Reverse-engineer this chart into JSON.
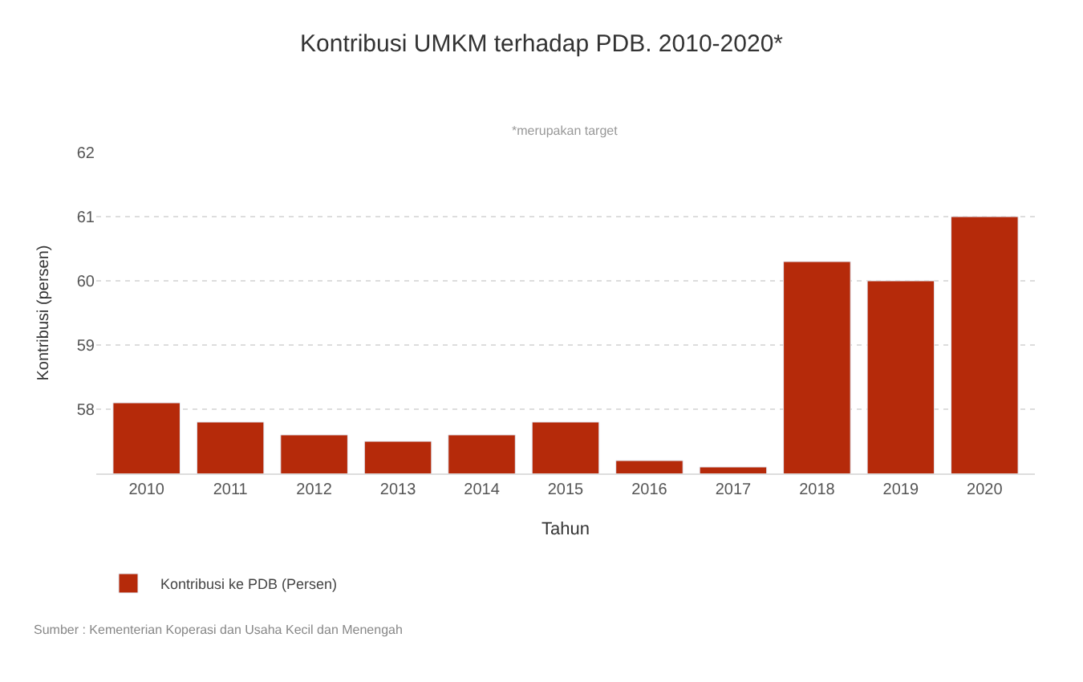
{
  "chart_data": {
    "type": "bar",
    "title": "Kontribusi UMKM terhadap PDB. 2010-2020*",
    "subtitle": "*merupakan target",
    "xlabel": "Tahun",
    "ylabel": "Kontribusi (persen)",
    "categories": [
      "2010",
      "2011",
      "2012",
      "2013",
      "2014",
      "2015",
      "2016",
      "2017",
      "2018",
      "2019",
      "2020"
    ],
    "series": [
      {
        "name": "Kontribusi ke PDB (Persen)",
        "color": "#b52a0a",
        "values": [
          58.1,
          57.8,
          57.6,
          57.5,
          57.6,
          57.8,
          57.2,
          57.1,
          60.3,
          60.0,
          61.0
        ]
      }
    ],
    "ylim": [
      57,
      62
    ],
    "yticks": [
      58,
      59,
      60,
      61,
      62
    ],
    "grid": "y",
    "legend": "bottom left",
    "annotations": [
      "Sumber : Kementerian Koperasi dan Usaha Kecil dan Menengah"
    ]
  }
}
